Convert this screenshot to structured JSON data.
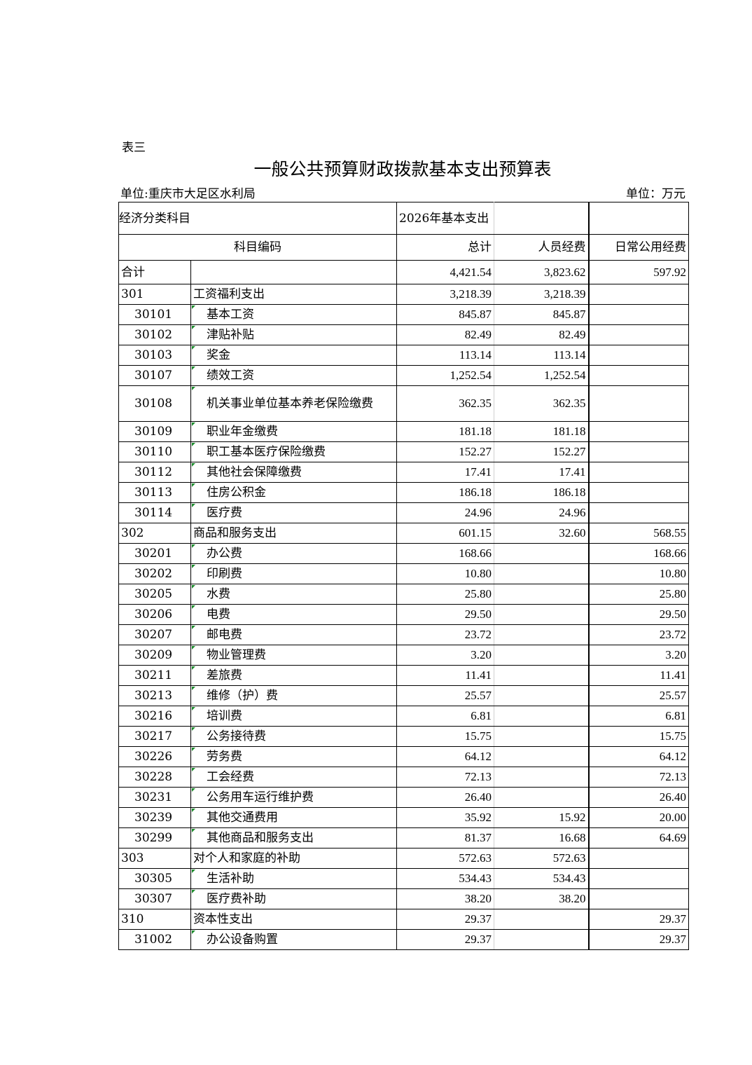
{
  "sheet_label": "表三",
  "title": "一般公共预算财政拨款基本支出预算表",
  "unit_left": "单位:重庆市大足区水利局",
  "unit_right": "单位：万元",
  "header": {
    "category": "经济分类科目",
    "year_label": "2026年基本支出",
    "code": "科目编码",
    "total": "总计",
    "personnel": "人员经费",
    "public": "日常公用经费"
  },
  "sum_row": {
    "label": "合计",
    "total": "4,421.54",
    "personnel": "3,823.62",
    "public": "597.92"
  },
  "rows": [
    {
      "code": "301",
      "name": "工资福利支出",
      "total": "3,218.39",
      "personnel": "3,218.39",
      "public": "",
      "level": 1
    },
    {
      "code": "30101",
      "name": "基本工资",
      "total": "845.87",
      "personnel": "845.87",
      "public": "",
      "level": 2
    },
    {
      "code": "30102",
      "name": "津贴补贴",
      "total": "82.49",
      "personnel": "82.49",
      "public": "",
      "level": 2
    },
    {
      "code": "30103",
      "name": "奖金",
      "total": "113.14",
      "personnel": "113.14",
      "public": "",
      "level": 2
    },
    {
      "code": "30107",
      "name": "绩效工资",
      "total": "1,252.54",
      "personnel": "1,252.54",
      "public": "",
      "level": 2
    },
    {
      "code": "30108",
      "name": "机关事业单位基本养老保险缴费",
      "total": "362.35",
      "personnel": "362.35",
      "public": "",
      "level": 2
    },
    {
      "code": "30109",
      "name": "职业年金缴费",
      "total": "181.18",
      "personnel": "181.18",
      "public": "",
      "level": 2
    },
    {
      "code": "30110",
      "name": "职工基本医疗保险缴费",
      "total": "152.27",
      "personnel": "152.27",
      "public": "",
      "level": 2
    },
    {
      "code": "30112",
      "name": "其他社会保障缴费",
      "total": "17.41",
      "personnel": "17.41",
      "public": "",
      "level": 2
    },
    {
      "code": "30113",
      "name": "住房公积金",
      "total": "186.18",
      "personnel": "186.18",
      "public": "",
      "level": 2
    },
    {
      "code": "30114",
      "name": "医疗费",
      "total": "24.96",
      "personnel": "24.96",
      "public": "",
      "level": 2
    },
    {
      "code": "302",
      "name": "商品和服务支出",
      "total": "601.15",
      "personnel": "32.60",
      "public": "568.55",
      "level": 1
    },
    {
      "code": "30201",
      "name": "办公费",
      "total": "168.66",
      "personnel": "",
      "public": "168.66",
      "level": 2
    },
    {
      "code": "30202",
      "name": "印刷费",
      "total": "10.80",
      "personnel": "",
      "public": "10.80",
      "level": 2
    },
    {
      "code": "30205",
      "name": "水费",
      "total": "25.80",
      "personnel": "",
      "public": "25.80",
      "level": 2
    },
    {
      "code": "30206",
      "name": "电费",
      "total": "29.50",
      "personnel": "",
      "public": "29.50",
      "level": 2
    },
    {
      "code": "30207",
      "name": "邮电费",
      "total": "23.72",
      "personnel": "",
      "public": "23.72",
      "level": 2
    },
    {
      "code": "30209",
      "name": "物业管理费",
      "total": "3.20",
      "personnel": "",
      "public": "3.20",
      "level": 2
    },
    {
      "code": "30211",
      "name": "差旅费",
      "total": "11.41",
      "personnel": "",
      "public": "11.41",
      "level": 2
    },
    {
      "code": "30213",
      "name": "维修（护）费",
      "total": "25.57",
      "personnel": "",
      "public": "25.57",
      "level": 2
    },
    {
      "code": "30216",
      "name": "培训费",
      "total": "6.81",
      "personnel": "",
      "public": "6.81",
      "level": 2
    },
    {
      "code": "30217",
      "name": "公务接待费",
      "total": "15.75",
      "personnel": "",
      "public": "15.75",
      "level": 2
    },
    {
      "code": "30226",
      "name": "劳务费",
      "total": "64.12",
      "personnel": "",
      "public": "64.12",
      "level": 2
    },
    {
      "code": "30228",
      "name": "工会经费",
      "total": "72.13",
      "personnel": "",
      "public": "72.13",
      "level": 2
    },
    {
      "code": "30231",
      "name": "公务用车运行维护费",
      "total": "26.40",
      "personnel": "",
      "public": "26.40",
      "level": 2
    },
    {
      "code": "30239",
      "name": "其他交通费用",
      "total": "35.92",
      "personnel": "15.92",
      "public": "20.00",
      "level": 2
    },
    {
      "code": "30299",
      "name": "其他商品和服务支出",
      "total": "81.37",
      "personnel": "16.68",
      "public": "64.69",
      "level": 2
    },
    {
      "code": "303",
      "name": "对个人和家庭的补助",
      "total": "572.63",
      "personnel": "572.63",
      "public": "",
      "level": 1
    },
    {
      "code": "30305",
      "name": "生活补助",
      "total": "534.43",
      "personnel": "534.43",
      "public": "",
      "level": 2
    },
    {
      "code": "30307",
      "name": "医疗费补助",
      "total": "38.20",
      "personnel": "38.20",
      "public": "",
      "level": 2
    },
    {
      "code": "310",
      "name": "资本性支出",
      "total": "29.37",
      "personnel": "",
      "public": "29.37",
      "level": 1
    },
    {
      "code": "31002",
      "name": "办公设备购置",
      "total": "29.37",
      "personnel": "",
      "public": "29.37",
      "level": 2
    }
  ]
}
